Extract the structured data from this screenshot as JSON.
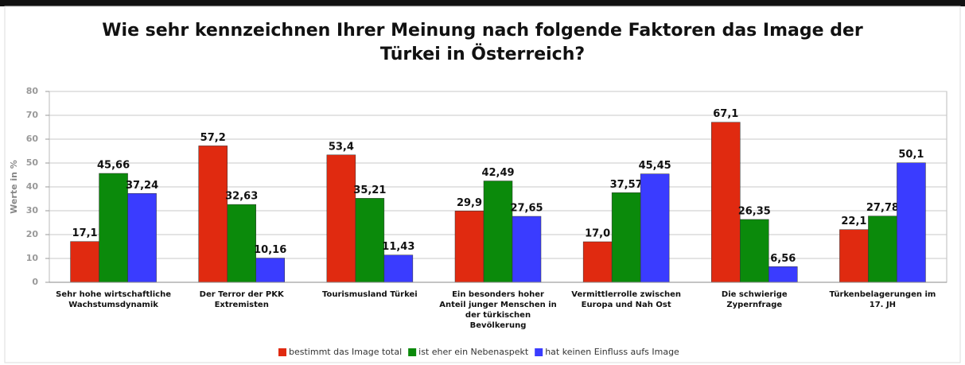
{
  "chart_data": {
    "type": "bar",
    "title": "Wie sehr kennzeichnen Ihrer Meinung nach folgende Faktoren das Image der Türkei in Österreich?",
    "y_label": "Werte in %",
    "categories": [
      "Sehr hohe wirtschaftliche Wachstumsdynamik",
      "Der Terror der PKK Extremisten",
      "Tourismusland Türkei",
      "Ein besonders hoher Anteil junger Menschen in der türkischen Bevölkerung",
      "Vermittlerrolle zwischen Europa und Nah Ost",
      "Die schwierige Zypernfrage",
      "Türkenbelagerungen im 17. JH"
    ],
    "series": [
      {
        "name": "bestimmt das Image total",
        "color": "#e02a10",
        "values": [
          17.1,
          57.2,
          53.4,
          29.9,
          17.0,
          67.1,
          22.1
        ],
        "value_labels": [
          "17,1",
          "57,2",
          "53,4",
          "29,9",
          "17,0",
          "67,1",
          "22,1"
        ]
      },
      {
        "name": "ist eher ein Nebenaspekt",
        "color": "#0b8a0b",
        "values": [
          45.66,
          32.63,
          35.21,
          42.49,
          37.57,
          26.35,
          27.78
        ],
        "value_labels": [
          "45,66",
          "32,63",
          "35,21",
          "42,49",
          "37,57",
          "26,35",
          "27,78"
        ]
      },
      {
        "name": "hat keinen Einfluss aufs Image",
        "color": "#3a3cff",
        "values": [
          37.24,
          10.16,
          11.43,
          27.65,
          45.45,
          6.56,
          50.1
        ],
        "value_labels": [
          "37,24",
          "10,16",
          "11,43",
          "27,65",
          "45,45",
          "6,56",
          "50,1"
        ]
      }
    ],
    "ylim": [
      0,
      80
    ],
    "yticks": [
      0,
      10,
      20,
      30,
      40,
      50,
      60,
      70,
      80
    ],
    "grid": true,
    "legend": "bottom"
  }
}
